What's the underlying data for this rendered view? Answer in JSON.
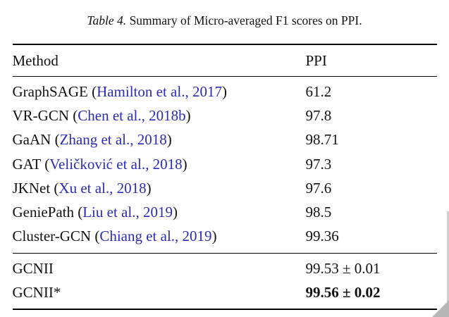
{
  "caption": {
    "label": "Table 4.",
    "text": " Summary of Micro-averaged F1 scores on PPI."
  },
  "table": {
    "columns": [
      "Method",
      "PPI"
    ],
    "rows": [
      {
        "prefix": "GraphSAGE (",
        "citation": "Hamilton et al., 2017",
        "suffix": ")",
        "value": "61.2"
      },
      {
        "prefix": "VR-GCN (",
        "citation": "Chen et al., 2018b",
        "suffix": ")",
        "value": "97.8"
      },
      {
        "prefix": "GaAN (",
        "citation": "Zhang et al., 2018",
        "suffix": ")",
        "value": "98.71"
      },
      {
        "prefix": "GAT (",
        "citation": "Veličković et al., 2018",
        "suffix": ")",
        "value": "97.3"
      },
      {
        "prefix": "JKNet (",
        "citation": "Xu et al., 2018",
        "suffix": ")",
        "value": "97.6"
      },
      {
        "prefix": "GeniePath (",
        "citation": "Liu et al., 2019",
        "suffix": ")",
        "value": "98.5"
      },
      {
        "prefix": "Cluster-GCN (",
        "citation": "Chiang et al., 2019",
        "suffix": ")",
        "value": "99.36"
      }
    ],
    "footer_rows": [
      {
        "method": "GCNII",
        "value": "99.53 ± 0.01"
      },
      {
        "method": "GCNII*",
        "value": "99.56 ± 0.02"
      }
    ]
  },
  "colors": {
    "citation": "#2b2bb5",
    "text": "#111111"
  }
}
